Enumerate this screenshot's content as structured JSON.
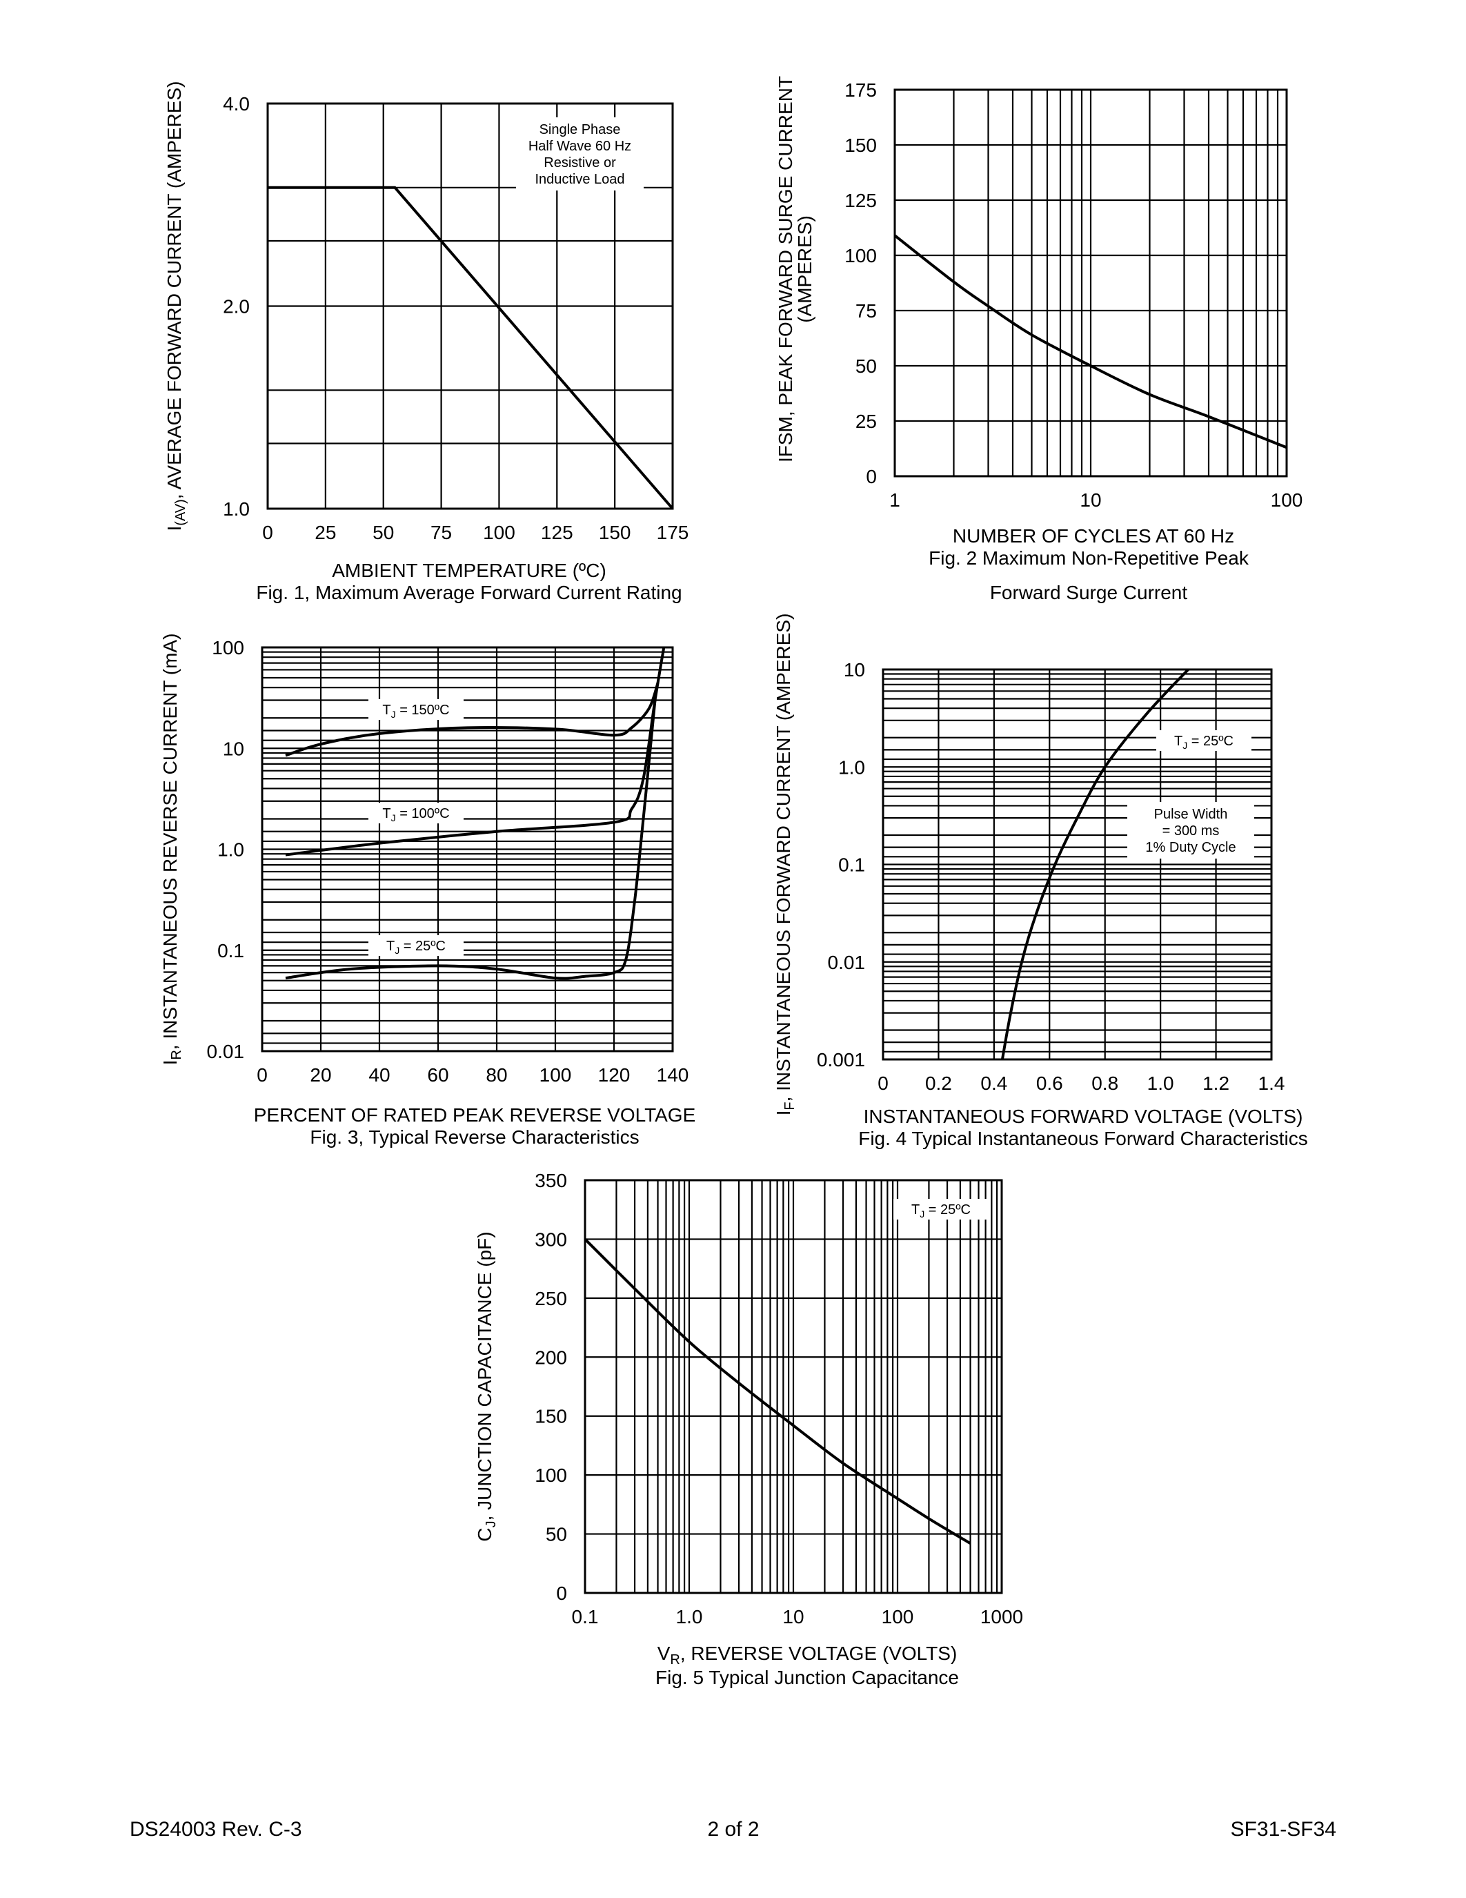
{
  "footer": {
    "doc_id": "DS24003 Rev. C-3",
    "page": "2 of 2",
    "part": "SF31-SF34"
  },
  "chart_data": [
    {
      "id": "fig1",
      "type": "line",
      "caption": "Fig. 1, Maximum Average Forward Current Rating",
      "xlabel": "AMBIENT TEMPERATURE (ºC)",
      "ylabel_parts": [
        "I",
        "(AV)",
        ", AVERAGE FORWARD CURRENT (AMPERES)"
      ],
      "y_scale": "log",
      "xlim": [
        0,
        175
      ],
      "ylim": [
        1.0,
        4.0
      ],
      "x_ticks": [
        0,
        25,
        50,
        75,
        100,
        125,
        150,
        175
      ],
      "x_tick_labels": [
        "0",
        "25",
        "50",
        "75",
        "100",
        "125",
        "150",
        "175"
      ],
      "y_ticks": [
        1.0,
        2.0,
        4.0
      ],
      "y_tick_labels": [
        "1.0",
        "2.0",
        "4.0"
      ],
      "y_gridlines": [
        1.0,
        1.25,
        1.5,
        2.0,
        2.5,
        3.0,
        4.0
      ],
      "grid": true,
      "annotation_lines": [
        "Single Phase",
        "Half Wave 60 Hz",
        "Resistive or",
        "Inductive Load"
      ],
      "series": [
        {
          "x": [
            0,
            55,
            175
          ],
          "y": [
            3.0,
            3.0,
            1.0
          ]
        }
      ]
    },
    {
      "id": "fig2",
      "type": "line",
      "caption_lines": [
        "Fig. 2  Maximum Non-Repetitive Peak",
        "Forward Surge Current"
      ],
      "xlabel": "NUMBER OF CYCLES AT 60 Hz",
      "ylabel_lines": [
        "IFSM, PEAK FORWARD SURGE CURRENT",
        "(AMPERES)"
      ],
      "x_scale": "log",
      "xlim": [
        1,
        100
      ],
      "ylim": [
        0,
        175
      ],
      "x_ticks": [
        1,
        10,
        100
      ],
      "x_tick_labels": [
        "1",
        "10",
        "100"
      ],
      "y_ticks": [
        0,
        25,
        50,
        75,
        100,
        125,
        150,
        175
      ],
      "y_tick_labels": [
        "0",
        "25",
        "50",
        "75",
        "100",
        "125",
        "150",
        "175"
      ],
      "grid": true,
      "series": [
        {
          "x": [
            1,
            2,
            3,
            5,
            10,
            20,
            40,
            100
          ],
          "y": [
            109,
            88,
            77,
            64,
            50,
            37,
            27,
            13
          ]
        }
      ]
    },
    {
      "id": "fig3",
      "type": "line",
      "caption": "Fig. 3, Typical Reverse Characteristics",
      "xlabel": "PERCENT OF RATED PEAK REVERSE VOLTAGE",
      "ylabel_parts": [
        "I",
        "R",
        ", INSTANTANEOUS REVERSE CURRENT (mA)"
      ],
      "y_scale": "log",
      "xlim": [
        0,
        140
      ],
      "ylim": [
        0.01,
        100
      ],
      "x_ticks": [
        0,
        20,
        40,
        60,
        80,
        100,
        120,
        140
      ],
      "x_tick_labels": [
        "0",
        "20",
        "40",
        "60",
        "80",
        "100",
        "120",
        "140"
      ],
      "y_ticks": [
        0.01,
        0.1,
        1.0,
        10,
        100
      ],
      "y_tick_labels": [
        "0.01",
        "0.1",
        "1.0",
        "10",
        "100"
      ],
      "grid": true,
      "series": [
        {
          "name": "150ºC",
          "x": [
            8,
            20,
            40,
            70,
            100,
            120,
            126,
            132,
            135
          ],
          "y": [
            8.5,
            11,
            14,
            16,
            15.5,
            13.5,
            16,
            25,
            45
          ]
        },
        {
          "name": "100ºC",
          "x": [
            8,
            40,
            80,
            120,
            126,
            130,
            134,
            137
          ],
          "y": [
            0.88,
            1.15,
            1.5,
            1.85,
            2.5,
            5,
            30,
            100
          ]
        },
        {
          "name": "25ºC",
          "x": [
            8,
            30,
            60,
            80,
            100,
            110,
            120,
            124,
            127,
            130,
            134
          ],
          "y": [
            0.053,
            0.065,
            0.07,
            0.065,
            0.053,
            0.055,
            0.06,
            0.08,
            0.3,
            2,
            30
          ]
        }
      ]
    },
    {
      "id": "fig4",
      "type": "line",
      "caption": "Fig. 4  Typical Instantaneous Forward Characteristics",
      "xlabel": "INSTANTANEOUS FORWARD VOLTAGE (VOLTS)",
      "ylabel_parts": [
        "I",
        "F",
        ", INSTANTANEOUS FORWARD CURRENT (AMPERES)"
      ],
      "y_scale": "log",
      "xlim": [
        0,
        1.4
      ],
      "ylim": [
        0.001,
        10
      ],
      "x_ticks": [
        0,
        0.2,
        0.4,
        0.6,
        0.8,
        1.0,
        1.2,
        1.4
      ],
      "x_tick_labels": [
        "0",
        "0.2",
        "0.4",
        "0.6",
        "0.8",
        "1.0",
        "1.2",
        "1.4"
      ],
      "y_ticks": [
        0.001,
        0.01,
        0.1,
        1.0,
        10
      ],
      "y_tick_labels": [
        "0.001",
        "0.01",
        "0.1",
        "1.0",
        "10"
      ],
      "grid": true,
      "annotation_lines": [
        "Pulse Width",
        "= 300 ms",
        "1% Duty Cycle"
      ],
      "series": [
        {
          "name": "25ºC",
          "x": [
            0.43,
            0.46,
            0.5,
            0.55,
            0.62,
            0.7,
            0.8,
            0.95,
            1.1
          ],
          "y": [
            0.001,
            0.003,
            0.01,
            0.03,
            0.1,
            0.3,
            1.0,
            3.5,
            10
          ]
        }
      ]
    },
    {
      "id": "fig5",
      "type": "line",
      "caption": "Fig. 5  Typical Junction Capacitance",
      "xlabel_parts": [
        "V",
        "R",
        ", REVERSE VOLTAGE (VOLTS)"
      ],
      "ylabel_parts": [
        "C",
        "J",
        ", JUNCTION CAPACITANCE (pF)"
      ],
      "x_scale": "log",
      "xlim": [
        0.1,
        1000
      ],
      "ylim": [
        0,
        350
      ],
      "x_ticks": [
        0.1,
        1,
        10,
        100,
        1000
      ],
      "x_tick_labels": [
        "0.1",
        "1.0",
        "10",
        "100",
        "1000"
      ],
      "y_ticks": [
        0,
        50,
        100,
        150,
        200,
        250,
        300,
        350
      ],
      "y_tick_labels": [
        "0",
        "50",
        "100",
        "150",
        "200",
        "250",
        "300",
        "350"
      ],
      "grid": true,
      "series": [
        {
          "name": "25ºC",
          "x": [
            0.1,
            0.3,
            1,
            3,
            10,
            30,
            100,
            200,
            500
          ],
          "y": [
            300,
            258,
            213,
            178,
            142,
            110,
            80,
            63,
            42
          ]
        }
      ]
    }
  ],
  "tj_prefix": "T",
  "tj_sub": "J",
  "tj_infix": " = "
}
